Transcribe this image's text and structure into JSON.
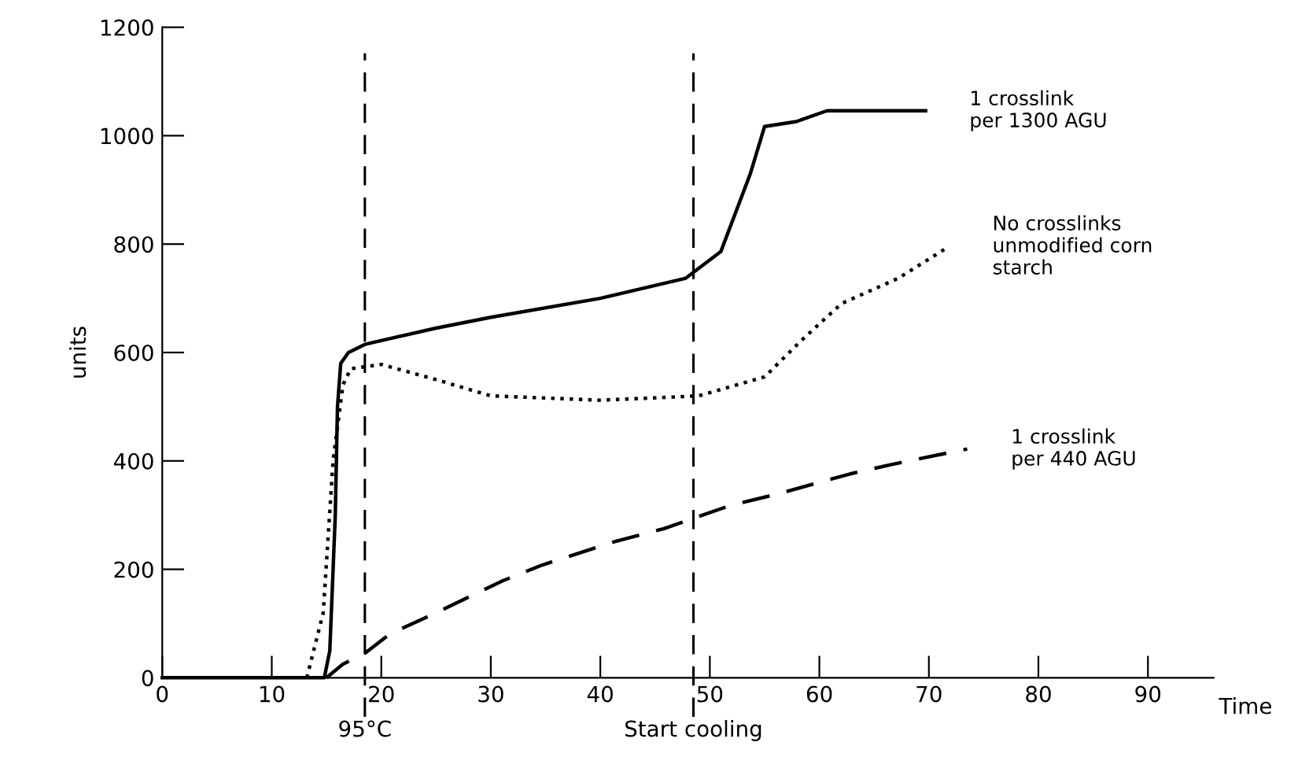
{
  "chart_data": {
    "type": "line",
    "xlabel": "Time",
    "ylabel": "units",
    "xlim": [
      0,
      96
    ],
    "ylim": [
      0,
      1200
    ],
    "xticks": [
      0,
      10,
      20,
      30,
      40,
      50,
      60,
      70,
      80,
      90
    ],
    "yticks": [
      0,
      200,
      400,
      600,
      800,
      1000,
      1200
    ],
    "grid": false,
    "marker": "none",
    "ref_lines": [
      {
        "axis": "x",
        "value": 18.5,
        "label": "95°C",
        "color": "#000000",
        "line_style": "dashed"
      },
      {
        "axis": "x",
        "value": 48.5,
        "label": "Start cooling",
        "color": "#000000",
        "line_style": "dashed"
      }
    ],
    "series": [
      {
        "name": "1 crosslink\nper 1300 AGU",
        "color": "#000000",
        "line_style": "solid",
        "x": [
          0,
          14.8,
          15.3,
          15.8,
          16,
          16.3,
          17,
          18.5,
          25,
          30,
          40,
          47.8,
          51,
          53.7,
          55,
          57.9,
          60.7,
          69.7
        ],
        "values": [
          0,
          0,
          50,
          300,
          500,
          580,
          600,
          615,
          645,
          665,
          700,
          737,
          786,
          930,
          1017,
          1026,
          1046,
          1046
        ]
      },
      {
        "name": "No crosslinks\nunmodified corn\nstarch",
        "color": "#000000",
        "line_style": "dotted",
        "x": [
          13.2,
          14.7,
          15.6,
          16.5,
          17.2,
          20,
          25,
          30,
          40,
          49,
          55,
          58.3,
          62,
          67.2,
          71.8
        ],
        "values": [
          0,
          120,
          401,
          540,
          570,
          578,
          550,
          520,
          512,
          520,
          555,
          621,
          690,
          737,
          795
        ]
      },
      {
        "name": "1 crosslink\nper 440 AGU",
        "color": "#000000",
        "line_style": "dashed",
        "x": [
          15,
          16.5,
          18.5,
          20.8,
          24.6,
          31.1,
          34.7,
          41.3,
          45.8,
          51.9,
          56,
          62.8,
          66.5,
          73.5
        ],
        "values": [
          0,
          25,
          45,
          81,
          116,
          179,
          208,
          251,
          275,
          318,
          338,
          376,
          393,
          422
        ]
      }
    ]
  }
}
